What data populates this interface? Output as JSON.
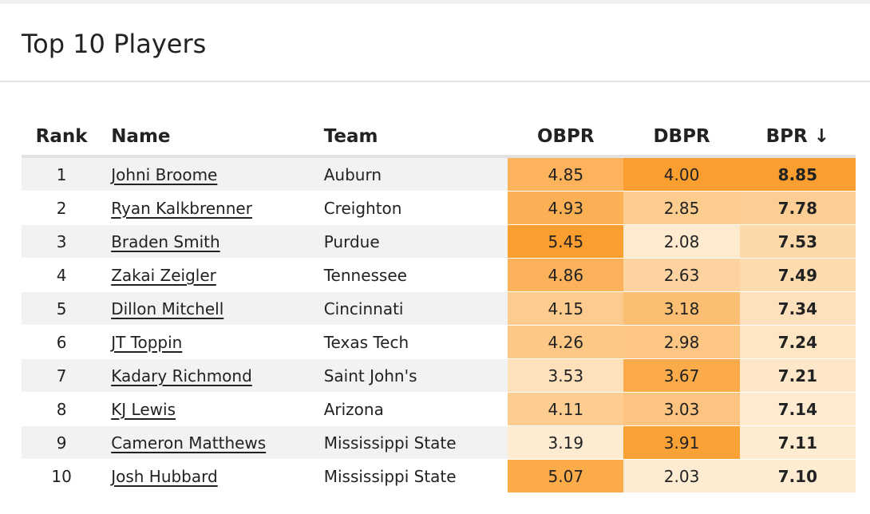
{
  "header": {
    "title": "Top 10 Players"
  },
  "table": {
    "columns": [
      "Rank",
      "Name",
      "Team",
      "OBPR",
      "DBPR",
      "BPR ↓"
    ],
    "rows": [
      [
        "1",
        "Johni Broome",
        "Auburn",
        "4.85",
        "4.00",
        "8.85"
      ],
      [
        "2",
        "Ryan Kalkbrenner",
        "Creighton",
        "4.93",
        "2.85",
        "7.78"
      ],
      [
        "3",
        "Braden Smith",
        "Purdue",
        "5.45",
        "2.08",
        "7.53"
      ],
      [
        "4",
        "Zakai Zeigler",
        "Tennessee",
        "4.86",
        "2.63",
        "7.49"
      ],
      [
        "5",
        "Dillon Mitchell",
        "Cincinnati",
        "4.15",
        "3.18",
        "7.34"
      ],
      [
        "6",
        "JT Toppin",
        "Texas Tech",
        "4.26",
        "2.98",
        "7.24"
      ],
      [
        "7",
        "Kadary Richmond",
        "Saint John's",
        "3.53",
        "3.67",
        "7.21"
      ],
      [
        "8",
        "KJ Lewis",
        "Arizona",
        "4.11",
        "3.03",
        "7.14"
      ],
      [
        "9",
        "Cameron Matthews",
        "Mississippi State",
        "3.19",
        "3.91",
        "7.11"
      ],
      [
        "10",
        "Josh Hubbard",
        "Mississippi State",
        "5.07",
        "2.03",
        "7.10"
      ]
    ]
  }
}
